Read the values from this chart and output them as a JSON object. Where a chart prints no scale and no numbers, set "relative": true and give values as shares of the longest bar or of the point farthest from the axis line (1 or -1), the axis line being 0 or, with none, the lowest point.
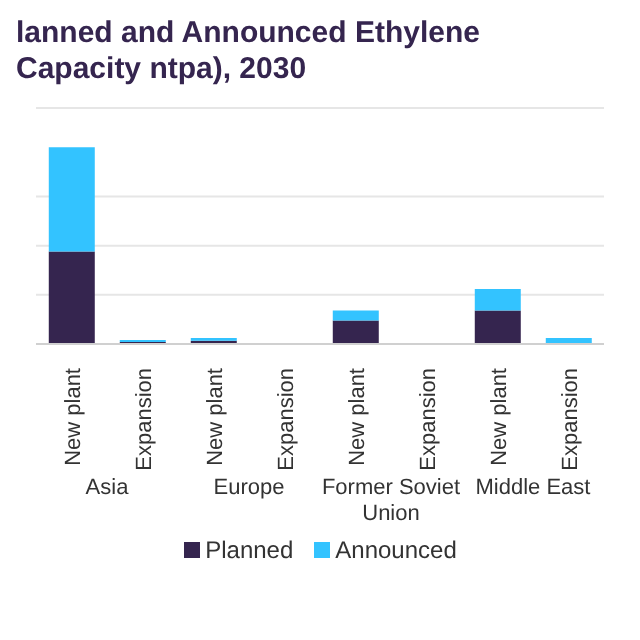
{
  "chart_data": {
    "type": "bar",
    "title": "lanned and Announced Ethylene Capacity ntpa), 2030",
    "categories": [
      "New plant",
      "Expansion",
      "New plant",
      "Expansion",
      "New plant",
      "Expansion",
      "New plant",
      "Expansion"
    ],
    "annotations": [
      "Asia",
      "Europe",
      "Former Soviet Union",
      "Middle East"
    ],
    "stacked": true,
    "relative": true,
    "grid": "y",
    "legend": "bottom",
    "series": [
      {
        "name": "Planned",
        "color": "#35254f",
        "values": [
          0.47,
          0.01,
          0.016,
          0,
          0.12,
          0,
          0.17,
          0
        ]
      },
      {
        "name": "Announced",
        "color": "#33c3ff",
        "values": [
          0.53,
          0.01,
          0.014,
          0,
          0.05,
          0,
          0.11,
          0.03
        ]
      }
    ]
  }
}
